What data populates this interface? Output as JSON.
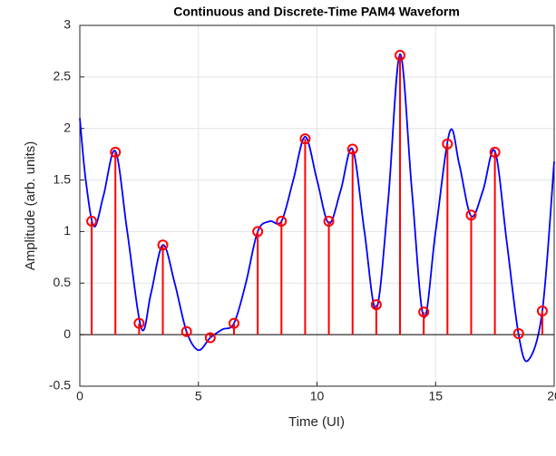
{
  "chart_data": {
    "type": "line",
    "title": "Continuous and Discrete-Time PAM4 Waveform",
    "x_label": "Time (UI)",
    "y_label": "Amplitude (arb. units)",
    "xlim": [
      0,
      20
    ],
    "ylim": [
      -0.5,
      3
    ],
    "xticks": [
      0,
      5,
      10,
      15,
      20
    ],
    "yticks": [
      -0.5,
      0,
      0.5,
      1,
      1.5,
      2,
      2.5,
      3
    ],
    "grid": true,
    "series": [
      {
        "type": "line",
        "color": "#0000ff",
        "x": [
          0,
          0.25,
          0.6,
          1.0,
          1.5,
          2.0,
          2.6,
          3.0,
          3.5,
          4.0,
          4.5,
          5.0,
          5.5,
          6.0,
          6.5,
          7.0,
          7.5,
          8.0,
          8.5,
          9.0,
          9.5,
          10.0,
          10.5,
          11.0,
          11.5,
          12.0,
          12.5,
          13.0,
          13.5,
          14.0,
          14.5,
          15.0,
          15.6,
          16.0,
          16.5,
          17.0,
          17.5,
          18.0,
          18.5,
          18.9,
          19.5,
          20
        ],
        "values": [
          2.1,
          1.5,
          1.05,
          1.35,
          1.78,
          1.0,
          0.06,
          0.4,
          0.87,
          0.5,
          0.03,
          -0.15,
          -0.03,
          0.05,
          0.11,
          0.5,
          1.0,
          1.1,
          1.1,
          1.5,
          1.92,
          1.5,
          1.08,
          1.4,
          1.8,
          1.0,
          0.25,
          1.3,
          2.72,
          1.4,
          0.17,
          1.0,
          1.97,
          1.65,
          1.15,
          1.4,
          1.78,
          0.9,
          0.0,
          -0.25,
          0.23,
          1.68
        ]
      },
      {
        "type": "stem",
        "color": "#ff0000",
        "x": [
          0.5,
          1.5,
          2.5,
          3.5,
          4.5,
          5.5,
          6.5,
          7.5,
          8.5,
          9.5,
          10.5,
          11.5,
          12.5,
          13.5,
          14.5,
          15.5,
          16.5,
          17.5,
          18.5,
          19.5
        ],
        "values": [
          1.1,
          1.77,
          0.11,
          0.87,
          0.03,
          -0.03,
          0.11,
          1.0,
          1.1,
          1.9,
          1.1,
          1.8,
          0.29,
          2.71,
          0.22,
          1.85,
          1.16,
          1.77,
          0.01,
          0.23
        ]
      }
    ]
  }
}
